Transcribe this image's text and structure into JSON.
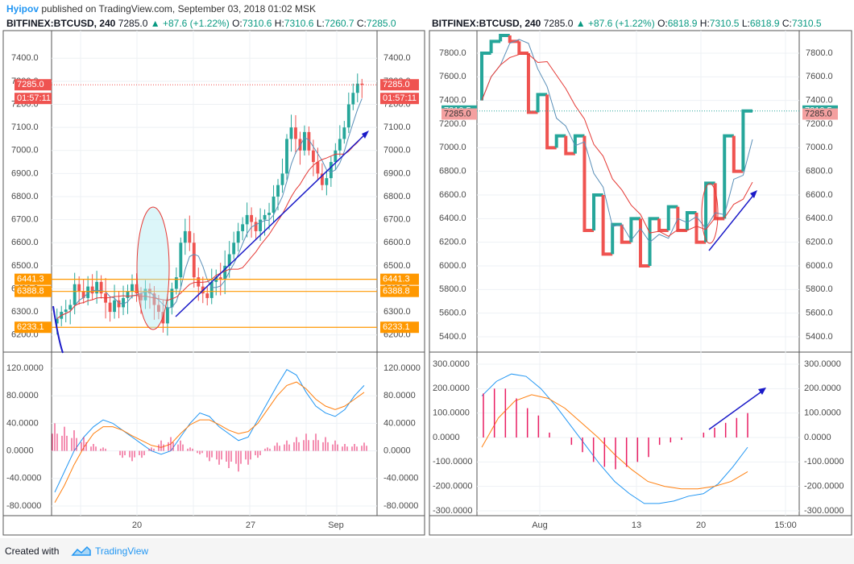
{
  "header": {
    "author": "Hyipov",
    "published": "published on TradingView.com, September 03, 2018 01:02 MSK"
  },
  "left": {
    "title": {
      "symbol": "BITFINEX:BTCUSD, 240",
      "last": "7285.0",
      "change": "+87.6 (+1.22%)",
      "o": "7310.6",
      "h": "7310.6",
      "l": "7260.7",
      "c": "7285.0"
    },
    "price_axis": [
      "7400.0",
      "7300.0",
      "7200.0",
      "7100.0",
      "7000.0",
      "6900.0",
      "6800.0",
      "6700.0",
      "6600.0",
      "6500.0",
      "6400.0",
      "6300.0",
      "6200.0"
    ],
    "osc_axis": [
      "120.0000",
      "80.0000",
      "40.0000",
      "0.0000",
      "-40.0000",
      "-80.0000"
    ],
    "time_axis": [
      "20",
      "27",
      "Sep"
    ],
    "tags": {
      "last_price": "7285.0",
      "countdown": "01:57:11",
      "level_1": "6441.3",
      "level_2": "6388.8",
      "level_3": "6233.1"
    }
  },
  "right": {
    "title": {
      "symbol": "BITFINEX:BTCUSD, 240",
      "last": "7285.0",
      "change": "+87.6 (+1.22%)",
      "o": "6818.9",
      "h": "7310.5",
      "l": "6818.9",
      "c": "7310.5"
    },
    "price_axis": [
      "7800.0",
      "7600.0",
      "7400.0",
      "7200.0",
      "7000.0",
      "6800.0",
      "6600.0",
      "6400.0",
      "6200.0",
      "6000.0",
      "5800.0",
      "5600.0",
      "5400.0"
    ],
    "osc_axis": [
      "300.0000",
      "200.0000",
      "100.0000",
      "0.0000",
      "-100.0000",
      "-200.0000",
      "-300.0000"
    ],
    "time_axis": [
      "Aug",
      "13",
      "20",
      "15:00"
    ],
    "tags": {
      "brick_price": "7310.5",
      "last_price": "7285.0"
    }
  },
  "footer": {
    "created": "Created with",
    "brand": "TradingView"
  },
  "chart_data": [
    {
      "type": "candlestick",
      "title": "BITFINEX:BTCUSD, 240",
      "ylim": [
        6150,
        7470
      ],
      "x_ticks": [
        "20",
        "27",
        "Sep"
      ],
      "horizontal_levels": [
        6441.3,
        6388.8,
        6233.1
      ],
      "last_price": 7285.0,
      "close_path": [
        6270,
        6300,
        6310,
        6330,
        6420,
        6390,
        6360,
        6410,
        6380,
        6430,
        6380,
        6340,
        6300,
        6350,
        6320,
        6360,
        6390,
        6420,
        6380,
        6350,
        6400,
        6380,
        6330,
        6300,
        6250,
        6320,
        6400,
        6450,
        6600,
        6650,
        6600,
        6450,
        6410,
        6380,
        6360,
        6430,
        6450,
        6440,
        6500,
        6550,
        6600,
        6650,
        6680,
        6720,
        6690,
        6650,
        6700,
        6720,
        6730,
        6800,
        6850,
        6900,
        7050,
        7100,
        7050,
        7000,
        7080,
        7000,
        6950,
        6900,
        6850,
        6880,
        6950,
        7000,
        7050,
        7100,
        7200,
        7250,
        7290,
        7285
      ],
      "moving_averages": [
        "blue fast MA",
        "red slow MA"
      ],
      "oscillator": {
        "ylim": [
          -90,
          130
        ],
        "main_line": [
          -60,
          -30,
          0,
          20,
          35,
          45,
          40,
          30,
          20,
          10,
          0,
          -5,
          0,
          20,
          40,
          55,
          50,
          35,
          25,
          15,
          20,
          45,
          70,
          95,
          118,
          110,
          85,
          65,
          55,
          50,
          60,
          80,
          95
        ],
        "signal_line": [
          -75,
          -50,
          -20,
          5,
          25,
          35,
          35,
          30,
          22,
          15,
          8,
          5,
          10,
          25,
          38,
          45,
          45,
          38,
          30,
          25,
          28,
          40,
          60,
          80,
          95,
          100,
          90,
          75,
          65,
          60,
          65,
          75,
          85
        ],
        "histogram": [
          40,
          35,
          30,
          20,
          10,
          5,
          0,
          -10,
          -15,
          -10,
          5,
          15,
          20,
          15,
          5,
          -5,
          -15,
          -20,
          -25,
          -30,
          -20,
          -10,
          5,
          12,
          15,
          20,
          25,
          25,
          20,
          15,
          10,
          10,
          12
        ]
      }
    },
    {
      "type": "renko",
      "title": "BITFINEX:BTCUSD, 240",
      "ylim": [
        5300,
        7900
      ],
      "x_ticks": [
        "Aug",
        "13",
        "20",
        "15:00"
      ],
      "brick_price": 7310.5,
      "last_price": 7285.0,
      "price_path": [
        7400,
        7800,
        7900,
        7950,
        7900,
        7800,
        7300,
        7450,
        7000,
        7100,
        6950,
        7100,
        6300,
        6600,
        6100,
        6350,
        6200,
        6400,
        6000,
        6400,
        6300,
        6500,
        6300,
        6450,
        6200,
        6700,
        6400,
        7100,
        6800,
        7310.5
      ],
      "oscillator": {
        "ylim": [
          -300,
          300
        ],
        "main_line": [
          170,
          230,
          260,
          250,
          200,
          130,
          50,
          -30,
          -110,
          -180,
          -230,
          -270,
          -270,
          -260,
          -240,
          -230,
          -190,
          -120,
          -40
        ],
        "signal_line": [
          -40,
          80,
          150,
          175,
          160,
          120,
          60,
          0,
          -70,
          -130,
          -180,
          -200,
          -210,
          -210,
          -200,
          -180,
          -140
        ],
        "histogram": [
          180,
          200,
          200,
          160,
          120,
          90,
          20,
          0,
          -30,
          -60,
          -100,
          -120,
          -130,
          -120,
          -100,
          -80,
          -30,
          -20,
          -10,
          0,
          20,
          40,
          60,
          80,
          100
        ]
      }
    }
  ]
}
